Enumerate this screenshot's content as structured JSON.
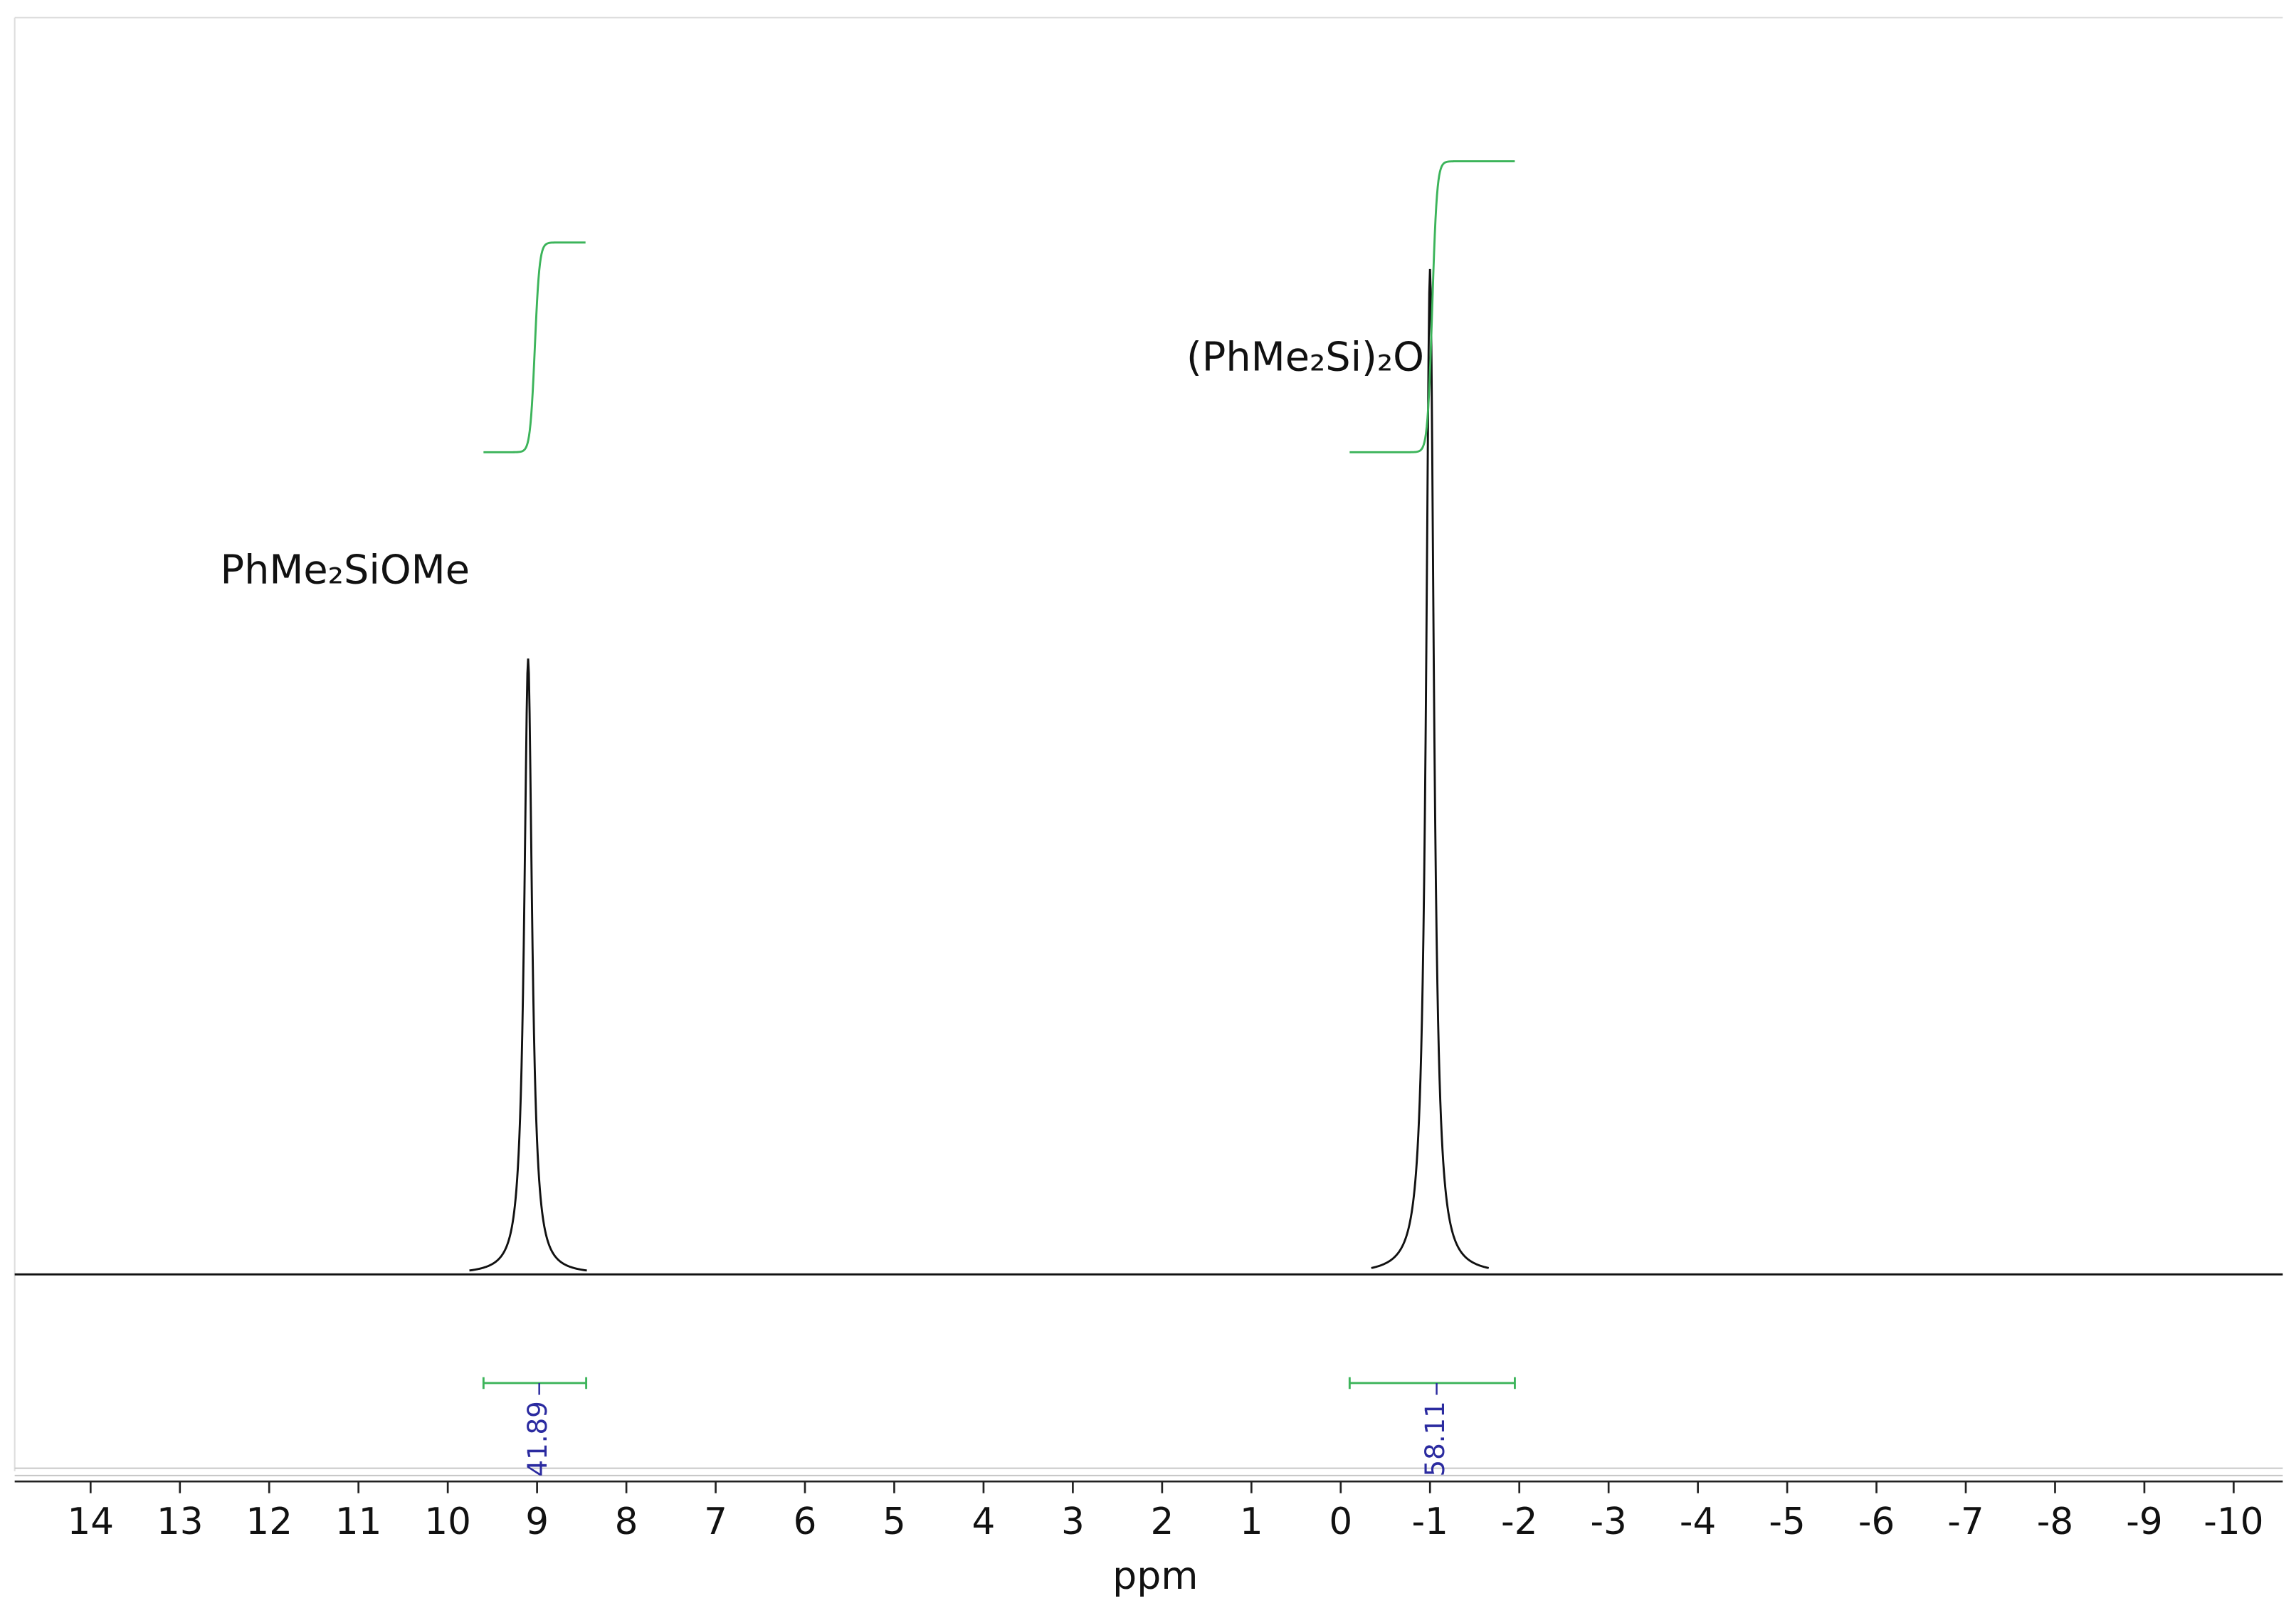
{
  "chart_data": {
    "type": "spectrum",
    "xlabel": "ppm",
    "xlim": [
      14.85,
      -10.55
    ],
    "xticks": [
      14,
      13,
      12,
      11,
      10,
      9,
      8,
      7,
      6,
      5,
      4,
      3,
      2,
      1,
      0,
      -1,
      -2,
      -3,
      -4,
      -5,
      -6,
      -7,
      -8,
      -9,
      -10
    ],
    "ylim": [
      0,
      100
    ],
    "line_color": "#111111",
    "integral_color": "#3cb45a",
    "integral_label_color": "#2b2ba0",
    "peaks": [
      {
        "label": "PhMe₂SiOMe",
        "ppm": 9.1,
        "height": 49
      },
      {
        "label": "(PhMe₂Si)₂O",
        "ppm": -1.0,
        "height": 80
      }
    ],
    "integrals": [
      {
        "range": [
          9.6,
          8.45
        ],
        "value": 41.89
      },
      {
        "range": [
          -0.1,
          -1.95
        ],
        "value": 58.11
      }
    ]
  }
}
